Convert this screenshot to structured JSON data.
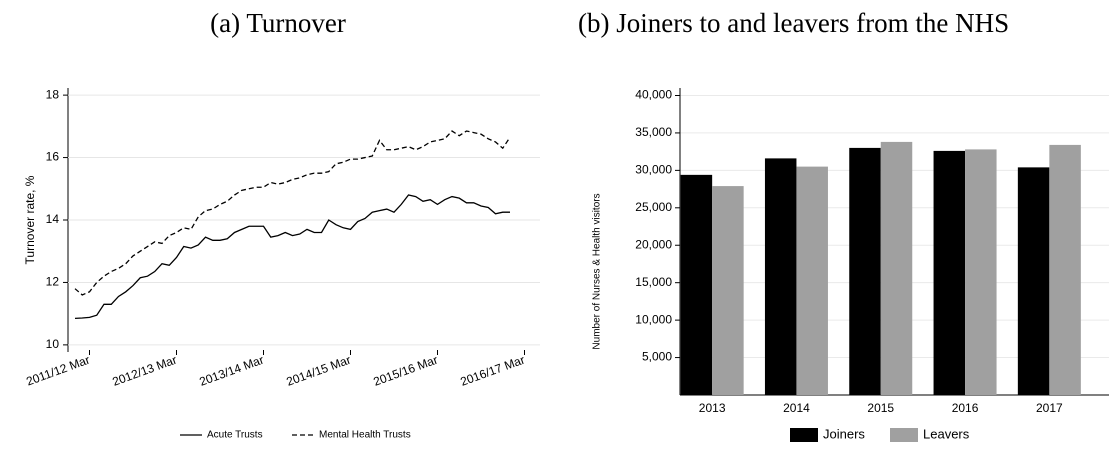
{
  "chart_data": [
    {
      "type": "line",
      "title": "(a) Turnover",
      "y_label": "Turnover rate, %",
      "categories": [
        null,
        null,
        "2011/12 Mar",
        null,
        null,
        null,
        null,
        null,
        null,
        null,
        null,
        null,
        null,
        null,
        "2012/13 Mar",
        null,
        null,
        null,
        null,
        null,
        null,
        null,
        null,
        null,
        null,
        null,
        "2013/14 Mar",
        null,
        null,
        null,
        null,
        null,
        null,
        null,
        null,
        null,
        null,
        null,
        "2014/15 Mar",
        null,
        null,
        null,
        null,
        null,
        null,
        null,
        null,
        null,
        null,
        null,
        "2015/16 Mar",
        null,
        null,
        null,
        null,
        null,
        null,
        null,
        null,
        null,
        null,
        null,
        "2016/17 Mar"
      ],
      "series": [
        {
          "name": "Acute Trusts",
          "color": "#000000",
          "style": "solid",
          "values": [
            10.85,
            10.86,
            10.88,
            10.95,
            11.3,
            11.3,
            11.55,
            11.7,
            11.9,
            12.15,
            12.2,
            12.35,
            12.6,
            12.55,
            12.8,
            13.15,
            13.1,
            13.2,
            13.45,
            13.35,
            13.35,
            13.4,
            13.6,
            13.7,
            13.8,
            13.8,
            13.8,
            13.45,
            13.5,
            13.6,
            13.5,
            13.55,
            13.7,
            13.6,
            13.6,
            14.0,
            13.85,
            13.75,
            13.7,
            13.95,
            14.05,
            14.25,
            14.3,
            14.35,
            14.25,
            14.5,
            14.8,
            14.75,
            14.6,
            14.65,
            14.5,
            14.65,
            14.75,
            14.7,
            14.55,
            14.55,
            14.45,
            14.4,
            14.2,
            14.25,
            14.25,
            null,
            null
          ]
        },
        {
          "name": "Mental Health Trusts",
          "color": "#000000",
          "style": "dashed",
          "values": [
            11.8,
            11.6,
            11.7,
            12.0,
            12.2,
            12.35,
            12.45,
            12.6,
            12.85,
            13.0,
            13.15,
            13.3,
            13.25,
            13.5,
            13.6,
            13.75,
            13.7,
            14.1,
            14.3,
            14.35,
            14.5,
            14.6,
            14.8,
            14.95,
            15.0,
            15.05,
            15.05,
            15.2,
            15.15,
            15.2,
            15.3,
            15.35,
            15.45,
            15.5,
            15.5,
            15.55,
            15.8,
            15.85,
            15.95,
            15.95,
            16.0,
            16.05,
            16.55,
            16.25,
            16.25,
            16.3,
            16.35,
            16.25,
            16.35,
            16.5,
            16.55,
            16.6,
            16.85,
            16.7,
            16.85,
            16.8,
            16.75,
            16.6,
            16.5,
            16.3,
            16.65,
            null,
            null
          ]
        }
      ],
      "ylim": [
        9.9,
        18.1
      ],
      "yticks": [
        10,
        12,
        14,
        16,
        18
      ],
      "grid": true,
      "legend": "bottom"
    },
    {
      "type": "bar",
      "title": "(b) Joiners to and leavers from the NHS",
      "y_label": "Number of Nurses & Health visitors",
      "categories": [
        "2013",
        "2014",
        "2015",
        "2016",
        "2017"
      ],
      "series": [
        {
          "name": "Joiners",
          "color": "#000000",
          "values": [
            29400,
            31600,
            33000,
            32600,
            30400
          ]
        },
        {
          "name": "Leavers",
          "color": "#a0a0a0",
          "values": [
            27900,
            30500,
            33800,
            32800,
            33400
          ]
        }
      ],
      "ylim": [
        0,
        41000
      ],
      "yticks": [
        {
          "value": 5000,
          "label": "5,000"
        },
        {
          "value": 10000,
          "label": "10,000"
        },
        {
          "value": 15000,
          "label": "15,000"
        },
        {
          "value": 20000,
          "label": "20,000"
        },
        {
          "value": 25000,
          "label": "25,000"
        },
        {
          "value": 30000,
          "label": "30,000"
        },
        {
          "value": 35000,
          "label": "35,000"
        },
        {
          "value": 40000,
          "label": "40,000"
        }
      ],
      "grid": true,
      "legend": "bottom"
    }
  ]
}
